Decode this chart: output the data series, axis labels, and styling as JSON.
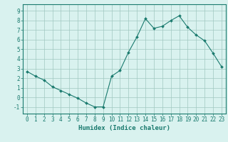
{
  "x": [
    0,
    1,
    2,
    3,
    4,
    5,
    6,
    7,
    8,
    9,
    10,
    11,
    12,
    13,
    14,
    15,
    16,
    17,
    18,
    19,
    20,
    21,
    22,
    23
  ],
  "y": [
    2.7,
    2.2,
    1.8,
    1.1,
    0.7,
    0.3,
    -0.1,
    -0.6,
    -1.0,
    -1.0,
    2.2,
    2.8,
    4.7,
    6.3,
    8.2,
    7.2,
    7.4,
    8.0,
    8.5,
    7.3,
    6.5,
    5.9,
    4.6,
    3.2
  ],
  "line_color": "#1a7a6e",
  "marker": "D",
  "marker_size": 2.0,
  "bg_color": "#d9f2ef",
  "grid_color": "#a0c8c0",
  "xlabel": "Humidex (Indice chaleur)",
  "xlim": [
    -0.5,
    23.5
  ],
  "ylim": [
    -1.7,
    9.7
  ],
  "yticks": [
    -1,
    0,
    1,
    2,
    3,
    4,
    5,
    6,
    7,
    8,
    9
  ],
  "xticks": [
    0,
    1,
    2,
    3,
    4,
    5,
    6,
    7,
    8,
    9,
    10,
    11,
    12,
    13,
    14,
    15,
    16,
    17,
    18,
    19,
    20,
    21,
    22,
    23
  ],
  "tick_color": "#1a7a6e",
  "label_fontsize": 5.5,
  "xlabel_fontsize": 6.5,
  "axis_color": "#1a7a6e",
  "linewidth": 0.8
}
